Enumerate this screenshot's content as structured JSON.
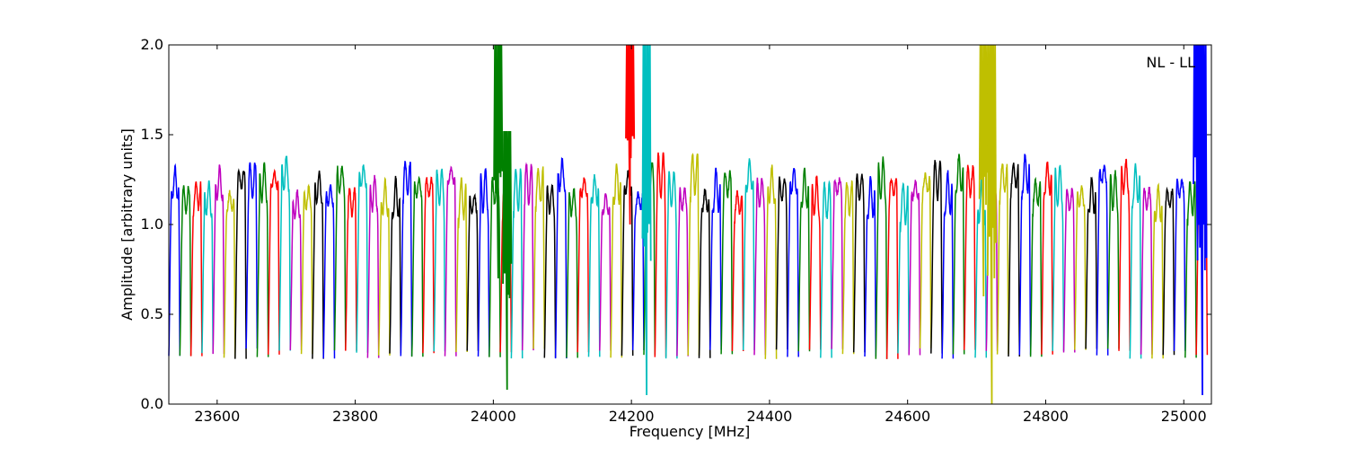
{
  "chart_data": {
    "type": "line",
    "title": "",
    "xlabel": "Frequency [MHz]",
    "ylabel": "Amplitude [arbitrary units]",
    "annotation": "NL - LL",
    "xlim": [
      23530,
      25040
    ],
    "ylim": [
      0.0,
      2.0
    ],
    "xticks": [
      23600,
      23800,
      24000,
      24200,
      24400,
      24600,
      24800,
      25000
    ],
    "xtick_labels": [
      "23600",
      "23800",
      "24000",
      "24200",
      "24400",
      "24600",
      "24800",
      "25000"
    ],
    "yticks": [
      0.0,
      0.5,
      1.0,
      1.5,
      2.0
    ],
    "ytick_labels": [
      "0.0",
      "0.5",
      "1.0",
      "1.5",
      "2.0"
    ],
    "grid": false,
    "legend": false,
    "colors_cycle": [
      "#0000ff",
      "#008000",
      "#ff0000",
      "#00bfbf",
      "#bf00bf",
      "#bfbf00",
      "#000000"
    ],
    "channel_width_mhz": 16,
    "channel_spacing_mhz": 16,
    "channel_start_mhz": 23530,
    "channel_count": 94,
    "typical_passband_level": 1.2,
    "typical_edge_level": 0.28,
    "spikes": [
      {
        "x": 24007,
        "ymin": 0.7,
        "ymax": 2.0,
        "color": "#008000"
      },
      {
        "x": 24020,
        "ymin": 0.08,
        "ymax": 1.52,
        "color": "#008000"
      },
      {
        "x": 24198,
        "ymin": 1.0,
        "ymax": 2.0,
        "color": "#ff0000"
      },
      {
        "x": 24222,
        "ymin": 0.05,
        "ymax": 2.0,
        "color": "#00bfbf"
      },
      {
        "x": 24710,
        "ymin": 0.6,
        "ymax": 2.0,
        "color": "#bfbf00"
      },
      {
        "x": 24722,
        "ymin": 0.0,
        "ymax": 2.0,
        "color": "#bfbf00"
      },
      {
        "x": 25020,
        "ymin": 0.8,
        "ymax": 2.0,
        "color": "#0000ff"
      },
      {
        "x": 25027,
        "ymin": 0.05,
        "ymax": 2.0,
        "color": "#0000ff"
      }
    ]
  }
}
